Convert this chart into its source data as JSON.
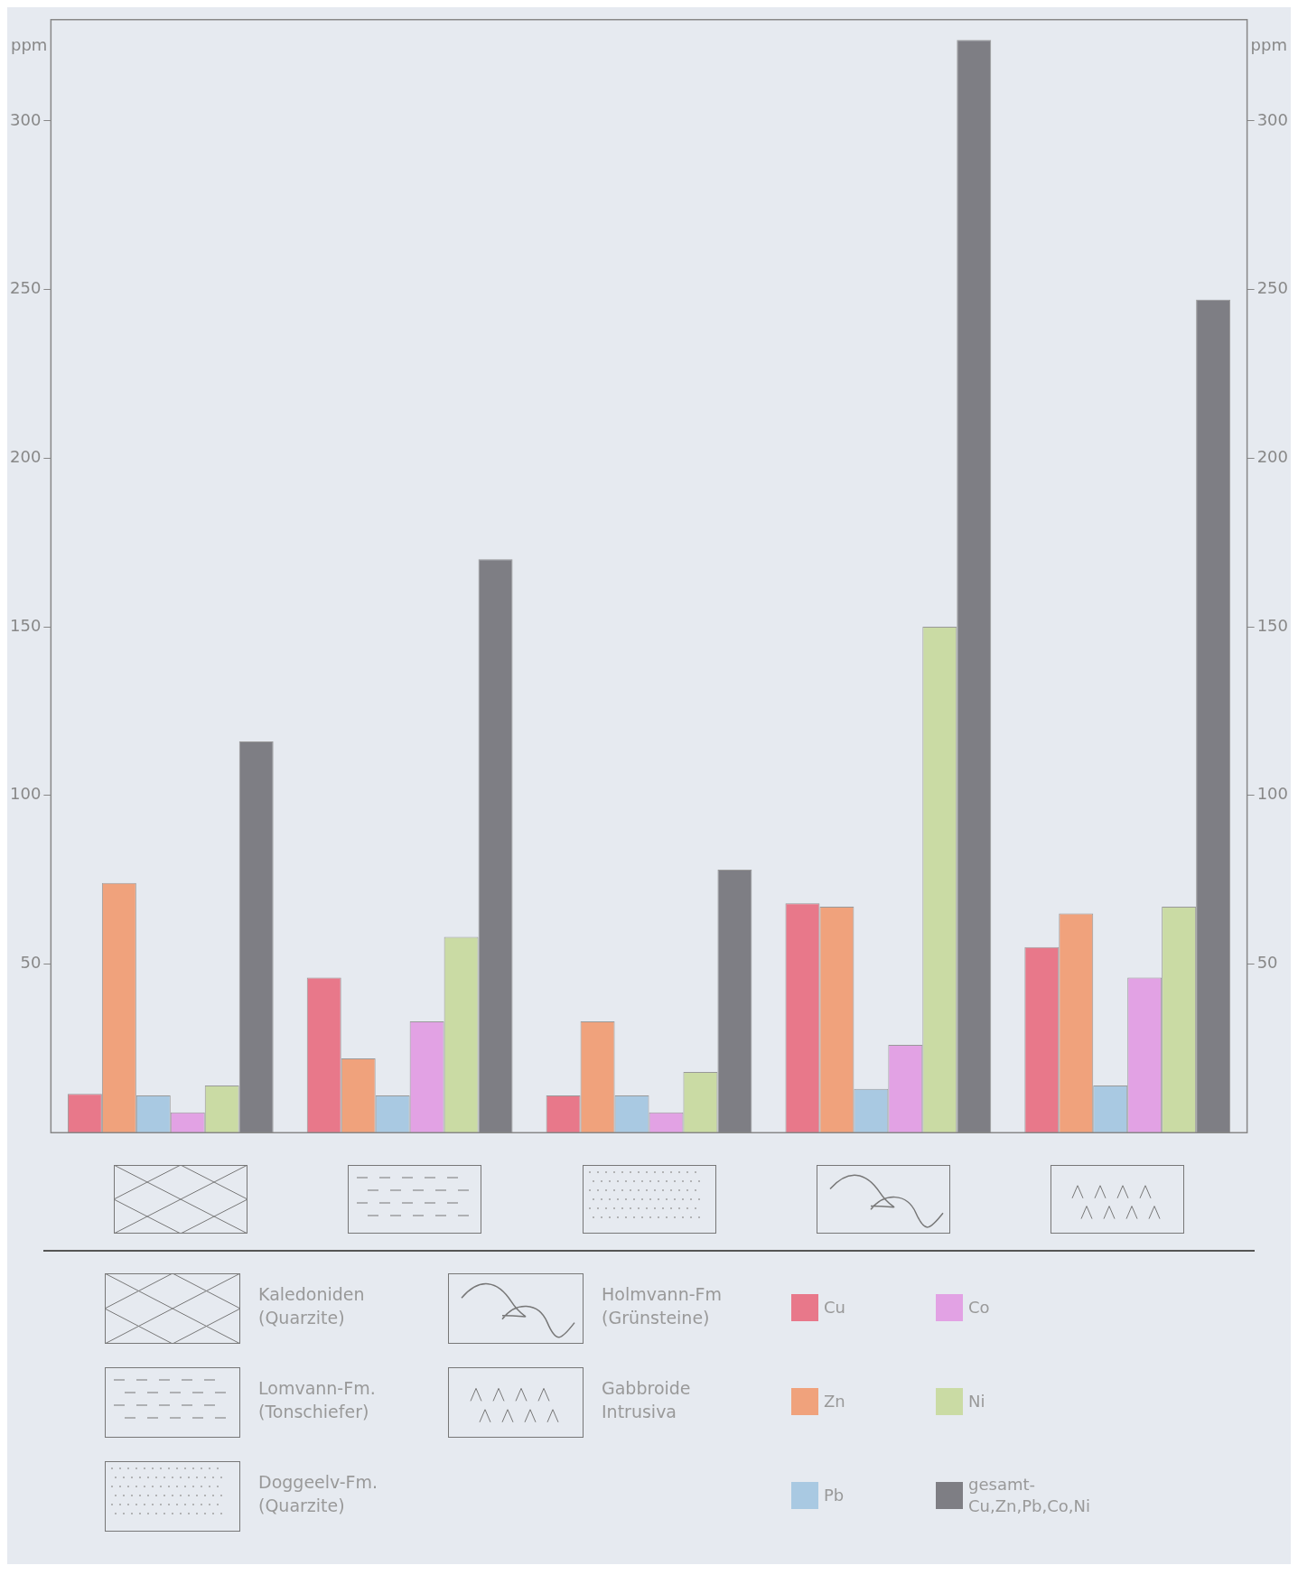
{
  "chart_data": {
    "type": "bar",
    "ylabel": "ppm",
    "y2label": "ppm",
    "categories": [
      null,
      null,
      null,
      null,
      null
    ],
    "series": [
      {
        "name": "Cu",
        "color": "#e8788a",
        "values": [
          11.5,
          46,
          11,
          68,
          55
        ]
      },
      {
        "name": "Zn",
        "color": "#f0a27c",
        "values": [
          74,
          22,
          33,
          67,
          65
        ]
      },
      {
        "name": "Pb",
        "color": "#a9c9e2",
        "values": [
          11,
          11,
          11,
          13,
          14
        ]
      },
      {
        "name": "Co",
        "color": "#e2a2e4",
        "values": [
          6,
          33,
          6,
          26,
          46
        ]
      },
      {
        "name": "Ni",
        "color": "#cadba4",
        "values": [
          14,
          58,
          18,
          150,
          67
        ]
      },
      {
        "name": "gesamt-Cu,Zn,Pb,Co,Ni",
        "color": "#7e7e84",
        "values": [
          116,
          170,
          78,
          324,
          247
        ]
      }
    ],
    "ylim": [
      0,
      330
    ],
    "yticks": [
      50,
      100,
      150,
      200,
      250,
      300
    ],
    "y2lim": [
      0,
      330
    ],
    "y2ticks": [
      50,
      100,
      150,
      200,
      250,
      300
    ],
    "tick_labels": "y",
    "grid": false,
    "legend": "bottom",
    "annotations": [
      "Kaledoniden (Quarzite)",
      "Lomvann-Fm. (Tonschiefer)",
      "Doggeelv-Fm. (Quarzite)",
      "Holmvann-Fm (Grünsteine)",
      "Gabbroide Intrusiva"
    ]
  }
}
